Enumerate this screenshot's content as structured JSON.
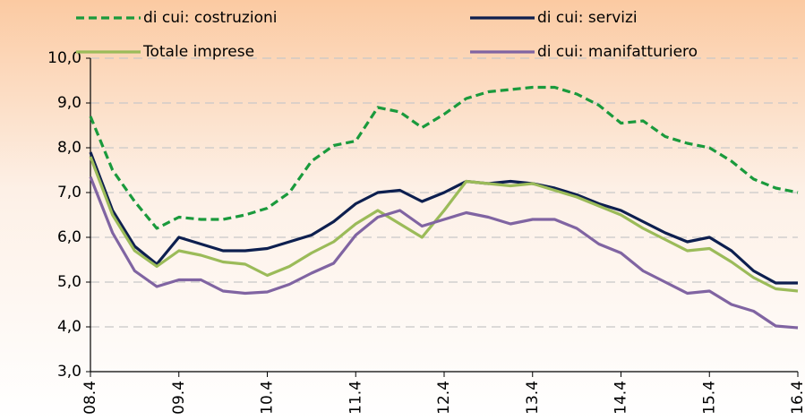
{
  "chart_data": {
    "type": "line",
    "categories": [
      "08.4",
      null,
      null,
      null,
      "09.4",
      null,
      null,
      null,
      "10.4",
      null,
      null,
      null,
      "11.4",
      null,
      null,
      null,
      "12.4",
      null,
      null,
      null,
      "13.4",
      null,
      null,
      null,
      "14.4",
      null,
      null,
      null,
      "15.4",
      null,
      null,
      null,
      "16.4"
    ],
    "series": [
      {
        "name": "di cui: costruzioni",
        "color": "#1a9a3c",
        "dashed": true,
        "values": [
          8.7,
          7.5,
          6.8,
          6.2,
          6.45,
          6.4,
          6.4,
          6.5,
          6.65,
          7.0,
          7.7,
          8.05,
          8.15,
          8.9,
          8.8,
          8.45,
          8.75,
          9.1,
          9.25,
          9.3,
          9.35,
          9.35,
          9.2,
          8.95,
          8.55,
          8.6,
          8.25,
          8.1,
          8.0,
          7.7,
          7.3,
          7.1,
          7.0
        ]
      },
      {
        "name": "di cui: servizi",
        "color": "#0d1f4f",
        "dashed": false,
        "values": [
          7.9,
          6.6,
          5.8,
          5.4,
          6.0,
          5.85,
          5.7,
          5.7,
          5.75,
          5.9,
          6.05,
          6.35,
          6.75,
          7.0,
          7.05,
          6.8,
          7.0,
          7.25,
          7.2,
          7.25,
          7.2,
          7.1,
          6.95,
          6.75,
          6.6,
          6.35,
          6.1,
          5.9,
          6.0,
          5.7,
          5.25,
          4.98,
          4.98
        ]
      },
      {
        "name": "Totale imprese",
        "color": "#9bbb59",
        "dashed": false,
        "values": [
          7.8,
          6.5,
          5.7,
          5.35,
          5.7,
          5.6,
          5.45,
          5.4,
          5.15,
          5.35,
          5.65,
          5.9,
          6.3,
          6.6,
          6.3,
          6.0,
          6.6,
          7.25,
          7.2,
          7.15,
          7.2,
          7.05,
          6.9,
          6.7,
          6.5,
          6.2,
          5.95,
          5.7,
          5.75,
          5.45,
          5.1,
          4.85,
          4.8
        ]
      },
      {
        "name": "di cui: manifatturiero",
        "color": "#8064a2",
        "dashed": false,
        "values": [
          7.35,
          6.1,
          5.25,
          4.9,
          5.05,
          5.05,
          4.8,
          4.75,
          4.78,
          4.95,
          5.2,
          5.42,
          6.05,
          6.45,
          6.6,
          6.25,
          6.4,
          6.55,
          6.45,
          6.3,
          6.4,
          6.4,
          6.2,
          5.85,
          5.65,
          5.25,
          5.0,
          4.75,
          4.8,
          4.5,
          4.35,
          4.02,
          3.98
        ]
      }
    ],
    "ylim": [
      3,
      10
    ],
    "yticks": [
      {
        "value": 3,
        "label": "3,0"
      },
      {
        "value": 4,
        "label": "4,0"
      },
      {
        "value": 5,
        "label": "5,0"
      },
      {
        "value": 6,
        "label": "6,0"
      },
      {
        "value": 7,
        "label": "7,0"
      },
      {
        "value": 8,
        "label": "8,0"
      },
      {
        "value": 9,
        "label": "9,0"
      },
      {
        "value": 10,
        "label": "10,0"
      }
    ],
    "grid": true
  }
}
